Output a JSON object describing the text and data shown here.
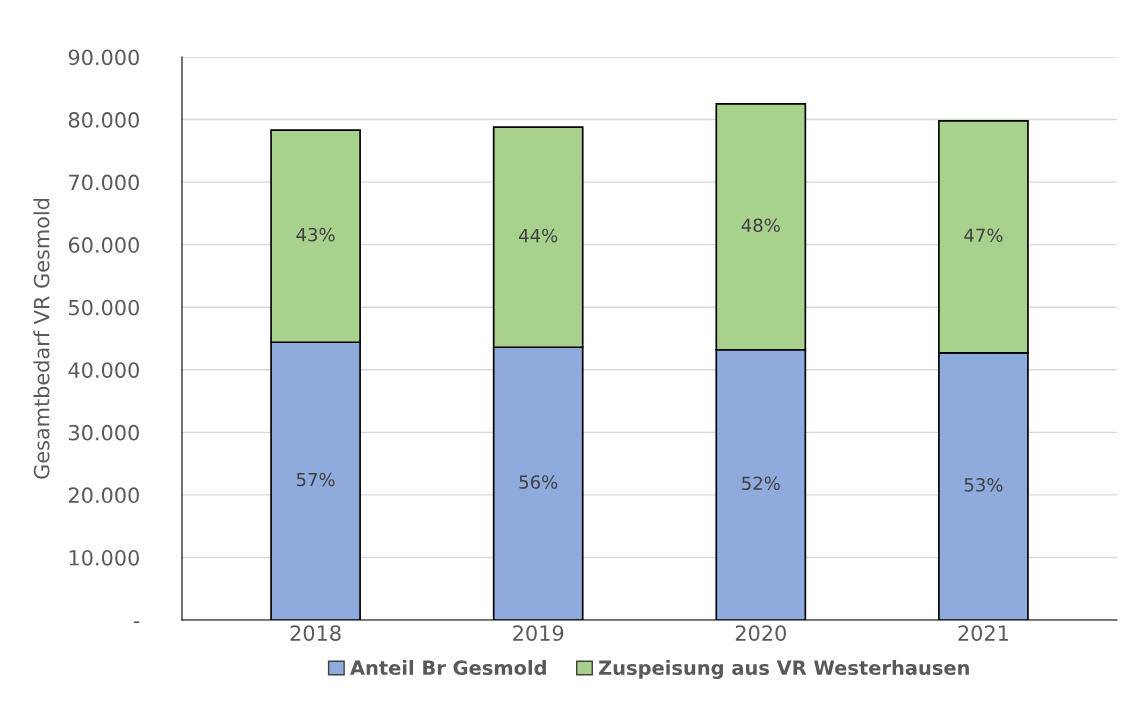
{
  "chart_data": {
    "type": "bar",
    "stacked": true,
    "ylabel": "Gesamtbedarf VR Gesmold",
    "categories": [
      "2018",
      "2019",
      "2020",
      "2021"
    ],
    "series": [
      {
        "name": "Anteil Br Gesmold",
        "color": "#8faadc",
        "values": [
          44400,
          43600,
          43200,
          42700
        ]
      },
      {
        "name": "Zuspeisung aus VR Westerhausen",
        "color": "#a9d18e",
        "values": [
          33900,
          35200,
          39300,
          37100
        ]
      }
    ],
    "annotations": [
      "57%",
      "56%",
      "52%",
      "53%",
      "43%",
      "44%",
      "48%",
      "47%"
    ],
    "ylim": [
      0,
      90000
    ],
    "yticks": [
      {
        "value": 0,
        "label": "-"
      },
      {
        "value": 10000,
        "label": "10.000"
      },
      {
        "value": 20000,
        "label": "20.000"
      },
      {
        "value": 30000,
        "label": "30.000"
      },
      {
        "value": 40000,
        "label": "40.000"
      },
      {
        "value": 50000,
        "label": "50.000"
      },
      {
        "value": 60000,
        "label": "60.000"
      },
      {
        "value": 70000,
        "label": "70.000"
      },
      {
        "value": 80000,
        "label": "80.000"
      },
      {
        "value": 90000,
        "label": "90.000"
      }
    ],
    "grid": "y",
    "legend": "bottom"
  }
}
